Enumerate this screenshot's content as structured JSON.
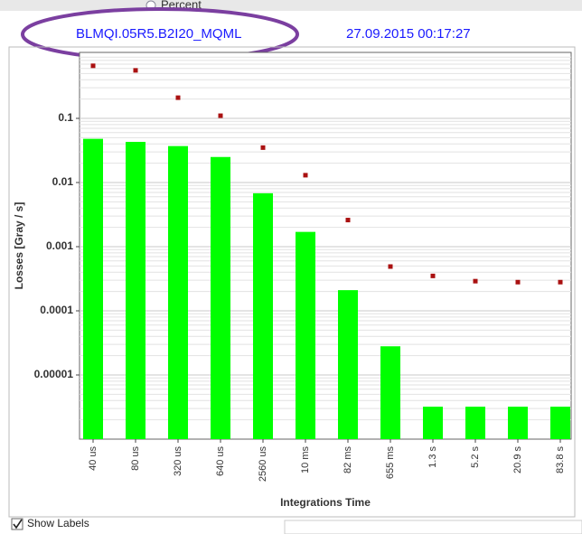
{
  "header": {
    "option": "Percent",
    "channel": "BLMQI.05R5.B2I20_MQML",
    "timestamp": "27.09.2015 00:17:27"
  },
  "chart_data": {
    "type": "bar",
    "categories": [
      "40 us",
      "80 us",
      "320 us",
      "640 us",
      "2560 us",
      "10 ms",
      "82 ms",
      "655 ms",
      "1.3 s",
      "5.2 s",
      "20.9 s",
      "83.8 s"
    ],
    "series": [
      {
        "type": "bar",
        "color": "#00ff00",
        "values": [
          0.048,
          0.043,
          0.037,
          0.025,
          0.0068,
          0.0017,
          0.00021,
          2.8e-05,
          3.2e-06,
          3.2e-06,
          3.2e-06,
          3.2e-06
        ]
      },
      {
        "type": "scatter",
        "color": "#aa1111",
        "values": [
          0.66,
          0.56,
          0.21,
          0.11,
          0.035,
          0.013,
          0.0026,
          0.00049,
          0.00035,
          0.00029,
          0.00028,
          0.00028
        ]
      }
    ],
    "ylabel": "Losses [Gray / s]",
    "xlabel": "Integrations Time",
    "ylim": [
      1e-06,
      1
    ],
    "yticks": [
      1e-05,
      0.0001,
      0.001,
      0.01,
      0.1
    ],
    "log_scale": true,
    "grid": true
  },
  "footer": {
    "checkbox": "Show Labels"
  }
}
